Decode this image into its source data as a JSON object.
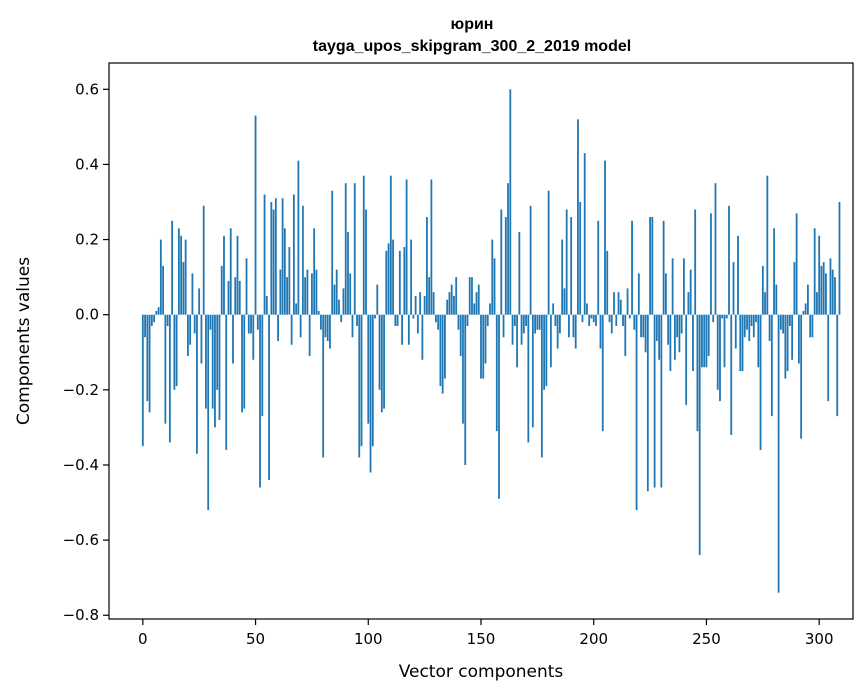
{
  "chart_data": {
    "type": "bar",
    "title_line1": "юрин",
    "title_line2": "tayga_upos_skipgram_300_2_2019 model",
    "xlabel": "Vector components",
    "ylabel": "Components values",
    "xlim": [
      -15,
      315
    ],
    "ylim": [
      -0.81,
      0.67
    ],
    "xticks": [
      0,
      50,
      100,
      150,
      200,
      250,
      300
    ],
    "xtick_labels": [
      "0",
      "50",
      "100",
      "150",
      "200",
      "250",
      "300"
    ],
    "yticks": [
      -0.8,
      -0.6,
      -0.4,
      -0.2,
      0.0,
      0.2,
      0.4,
      0.6
    ],
    "ytick_labels": [
      "−0.8",
      "−0.6",
      "−0.4",
      "−0.2",
      "0.0",
      "0.2",
      "0.4",
      "0.6"
    ],
    "bar_color": "#1f77b4",
    "grid": false,
    "values": [
      -0.35,
      -0.06,
      -0.23,
      -0.26,
      -0.03,
      -0.02,
      0.01,
      0.02,
      0.2,
      0.13,
      -0.29,
      -0.03,
      -0.34,
      0.25,
      -0.2,
      -0.19,
      0.23,
      0.21,
      0.14,
      0.2,
      -0.11,
      -0.08,
      0.11,
      -0.05,
      -0.37,
      0.07,
      -0.13,
      0.29,
      -0.25,
      -0.52,
      -0.04,
      -0.25,
      -0.3,
      -0.2,
      -0.28,
      0.13,
      0.21,
      -0.36,
      0.09,
      0.23,
      -0.13,
      0.1,
      0.21,
      0.09,
      -0.26,
      -0.25,
      0.15,
      -0.05,
      -0.05,
      -0.12,
      0.53,
      -0.04,
      -0.46,
      -0.27,
      0.32,
      0.05,
      -0.44,
      0.3,
      0.28,
      0.31,
      -0.07,
      0.12,
      0.31,
      0.23,
      0.1,
      0.18,
      -0.08,
      0.32,
      0.03,
      0.41,
      -0.06,
      0.29,
      0.1,
      0.12,
      -0.11,
      0.11,
      0.23,
      0.12,
      0.01,
      -0.04,
      -0.38,
      -0.06,
      -0.07,
      -0.09,
      0.33,
      0.08,
      0.12,
      0.04,
      -0.02,
      0.07,
      0.35,
      0.22,
      0.11,
      -0.06,
      0.35,
      -0.03,
      -0.38,
      -0.35,
      0.37,
      0.28,
      -0.29,
      -0.42,
      -0.35,
      -0.01,
      0.08,
      -0.2,
      -0.26,
      -0.25,
      0.17,
      0.19,
      0.37,
      0.2,
      -0.03,
      -0.03,
      0.17,
      -0.08,
      0.18,
      0.36,
      -0.08,
      0.2,
      -0.01,
      0.05,
      -0.05,
      0.06,
      -0.12,
      0.05,
      0.26,
      0.1,
      0.36,
      0.06,
      -0.02,
      -0.04,
      -0.19,
      -0.21,
      -0.17,
      0.04,
      0.06,
      0.08,
      0.05,
      0.1,
      -0.04,
      -0.11,
      -0.29,
      -0.4,
      -0.03,
      0.1,
      0.1,
      0.03,
      0.06,
      0.08,
      -0.17,
      -0.17,
      -0.13,
      -0.03,
      0.03,
      0.2,
      0.15,
      -0.31,
      -0.49,
      0.28,
      -0.06,
      0.26,
      0.35,
      0.6,
      -0.08,
      -0.03,
      -0.14,
      0.22,
      -0.08,
      -0.05,
      -0.03,
      -0.34,
      0.29,
      -0.3,
      -0.05,
      -0.04,
      -0.04,
      -0.38,
      -0.2,
      -0.19,
      0.33,
      -0.14,
      0.03,
      -0.03,
      -0.09,
      -0.05,
      0.2,
      0.07,
      0.28,
      -0.06,
      0.26,
      -0.06,
      -0.09,
      0.52,
      0.3,
      -0.02,
      0.43,
      0.03,
      -0.03,
      -0.01,
      -0.02,
      -0.03,
      0.25,
      -0.09,
      -0.31,
      0.41,
      0.17,
      -0.02,
      -0.05,
      0.06,
      -0.03,
      0.06,
      0.04,
      -0.03,
      -0.11,
      0.07,
      -0.01,
      0.25,
      -0.04,
      -0.52,
      0.11,
      -0.06,
      -0.06,
      -0.1,
      -0.47,
      0.26,
      0.26,
      -0.46,
      -0.07,
      -0.12,
      -0.46,
      0.25,
      0.11,
      -0.08,
      -0.15,
      0.15,
      -0.12,
      -0.06,
      -0.1,
      -0.05,
      0.15,
      -0.24,
      0.06,
      0.12,
      -0.15,
      0.28,
      -0.31,
      -0.64,
      -0.14,
      -0.14,
      -0.14,
      -0.11,
      0.27,
      -0.02,
      0.35,
      -0.2,
      -0.23,
      -0.01,
      -0.14,
      -0.01,
      0.29,
      -0.32,
      0.14,
      -0.09,
      0.21,
      -0.15,
      -0.15,
      -0.06,
      -0.04,
      -0.07,
      -0.03,
      -0.06,
      -0.02,
      -0.14,
      -0.36,
      0.13,
      0.06,
      0.37,
      -0.07,
      -0.27,
      0.23,
      0.08,
      -0.74,
      -0.04,
      -0.05,
      -0.17,
      -0.15,
      -0.03,
      -0.12,
      0.14,
      0.27,
      -0.13,
      -0.33,
      0.01,
      0.03,
      0.08,
      -0.06,
      -0.06,
      0.23,
      0.06,
      0.21,
      0.13,
      0.14,
      0.11,
      -0.23,
      0.15,
      0.12,
      0.1,
      -0.27,
      0.3
    ]
  }
}
